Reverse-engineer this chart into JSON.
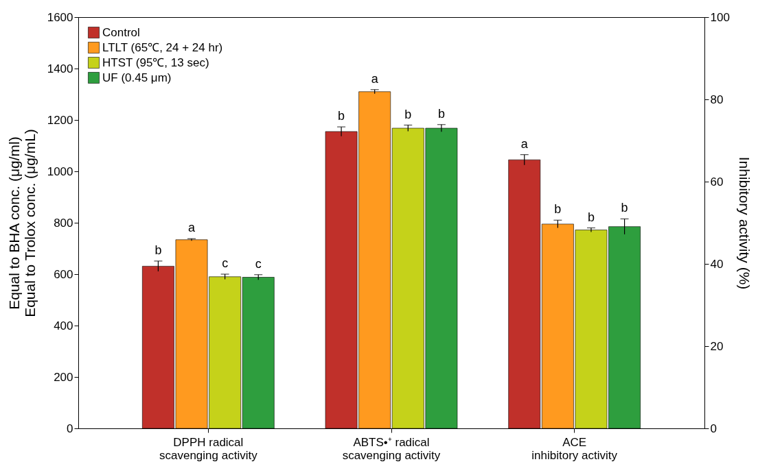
{
  "chart_data": {
    "type": "bar",
    "categories": [
      "DPPH radical\nscavenging activity",
      "ABTS•⁺ radical\nscavenging activity",
      "ACE\ninhibitory activity"
    ],
    "ylabel": "Equal to BHA conc. (μg/ml)\nEqual to Trolox conc. (μg/mL)",
    "y2label": "Inhibitory activity (%)",
    "ylim": [
      0,
      1600
    ],
    "yticks": [
      0,
      200,
      400,
      600,
      800,
      1000,
      1200,
      1400,
      1600
    ],
    "y2lim": [
      0,
      100
    ],
    "y2ticks": [
      0,
      20,
      40,
      60,
      80,
      100
    ],
    "series": [
      {
        "name": "Control",
        "color": "#c0302a",
        "values": [
          631,
          1155,
          1045
        ],
        "errors": [
          20,
          18,
          20
        ],
        "value_labels": [
          "b",
          "b",
          "a"
        ]
      },
      {
        "name": "LTLT (65℃, 24 + 24 hr)",
        "color": "#ff9a1f",
        "values": [
          734,
          1310,
          795
        ],
        "errors": [
          4,
          8,
          15
        ],
        "value_labels": [
          "a",
          "a",
          "b"
        ]
      },
      {
        "name": "HTST (95℃, 13 sec)",
        "color": "#c5d21a",
        "values": [
          590,
          1168,
          772
        ],
        "errors": [
          10,
          12,
          8
        ],
        "value_labels": [
          "c",
          "b",
          "b"
        ]
      },
      {
        "name": "UF (0.45 μm)",
        "color": "#2e9e3e",
        "values": [
          588,
          1168,
          785
        ],
        "errors": [
          10,
          14,
          30
        ],
        "value_labels": [
          "c",
          "b",
          "b"
        ]
      }
    ],
    "legend": "top left",
    "grid": false
  }
}
